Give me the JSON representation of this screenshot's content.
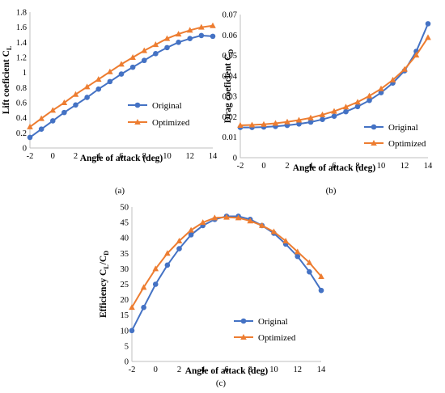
{
  "colors": {
    "original": "#4472C4",
    "optimized": "#ED7D31",
    "axis": "#bfbfbf"
  },
  "chart_data": [
    {
      "type": "line",
      "caption": "(a)",
      "xlabel": "Angle of attack (deg)",
      "ylabel_main": "Lift coeficient C",
      "ylabel_sub": "L",
      "xlim": [
        -2,
        14
      ],
      "ylim": [
        0,
        1.8
      ],
      "xticks": [
        -2,
        0,
        2,
        4,
        6,
        8,
        10,
        12,
        14
      ],
      "yticks": [
        "0",
        "0.2",
        "0.4",
        "0.6",
        "0.8",
        "1",
        "1.2",
        "1.4",
        "1.6",
        "1.8"
      ],
      "ytick_values": [
        0,
        0.2,
        0.4,
        0.6,
        0.8,
        1.0,
        1.2,
        1.4,
        1.6,
        1.8
      ],
      "grid": false,
      "legend_position": "lower-right",
      "x": [
        -2,
        -1,
        0,
        1,
        2,
        3,
        4,
        5,
        6,
        7,
        8,
        9,
        10,
        11,
        12,
        13,
        14
      ],
      "series": [
        {
          "name": "Original",
          "marker": "circle",
          "values": [
            0.14,
            0.25,
            0.36,
            0.47,
            0.57,
            0.67,
            0.78,
            0.88,
            0.98,
            1.07,
            1.16,
            1.25,
            1.33,
            1.4,
            1.45,
            1.49,
            1.48
          ]
        },
        {
          "name": "Optimized",
          "marker": "triangle",
          "values": [
            0.28,
            0.39,
            0.5,
            0.6,
            0.71,
            0.81,
            0.91,
            1.01,
            1.11,
            1.2,
            1.29,
            1.37,
            1.45,
            1.51,
            1.56,
            1.6,
            1.62
          ]
        }
      ]
    },
    {
      "type": "line",
      "caption": "(b)",
      "xlabel": "Angle of attack (deg)",
      "ylabel_main": "Drag coeficient C",
      "ylabel_sub": "D",
      "xlim": [
        -2,
        14
      ],
      "ylim": [
        0,
        0.07
      ],
      "xticks": [
        -2,
        0,
        2,
        4,
        6,
        8,
        10,
        12,
        14
      ],
      "yticks": [
        "0",
        "0.01",
        "0.02",
        "0.03",
        "0.04",
        "0.05",
        "0.06",
        "0.07"
      ],
      "ytick_values": [
        0,
        0.01,
        0.02,
        0.03,
        0.04,
        0.05,
        0.06,
        0.07
      ],
      "grid": false,
      "legend_position": "lower-right",
      "x": [
        -2,
        -1,
        0,
        1,
        2,
        3,
        4,
        5,
        6,
        7,
        8,
        9,
        10,
        11,
        12,
        13,
        14
      ],
      "series": [
        {
          "name": "Original",
          "marker": "circle",
          "values": [
            0.0148,
            0.0148,
            0.015,
            0.0153,
            0.0158,
            0.0165,
            0.0174,
            0.0187,
            0.0203,
            0.0225,
            0.025,
            0.028,
            0.0318,
            0.0365,
            0.0425,
            0.052,
            0.0655
          ]
        },
        {
          "name": "Optimized",
          "marker": "triangle",
          "values": [
            0.0158,
            0.016,
            0.0163,
            0.0168,
            0.0175,
            0.0184,
            0.0195,
            0.021,
            0.0227,
            0.0248,
            0.0272,
            0.0302,
            0.0337,
            0.038,
            0.0432,
            0.0502,
            0.0588
          ]
        }
      ]
    },
    {
      "type": "line",
      "caption": "(c)",
      "xlabel": "Angle of attack (deg)",
      "ylabel_main": "Efficiency C",
      "ylabel_sub": "L",
      "ylabel_mid": "/C",
      "ylabel_sub2": "D",
      "xlim": [
        -2,
        14
      ],
      "ylim": [
        0,
        50
      ],
      "xticks": [
        -2,
        0,
        2,
        4,
        6,
        8,
        10,
        12,
        14
      ],
      "yticks": [
        "0",
        "5",
        "10",
        "15",
        "20",
        "25",
        "30",
        "35",
        "40",
        "45",
        "50"
      ],
      "ytick_values": [
        0,
        5,
        10,
        15,
        20,
        25,
        30,
        35,
        40,
        45,
        50
      ],
      "grid": false,
      "legend_position": "lower-right",
      "x": [
        -2,
        -1,
        0,
        1,
        2,
        3,
        4,
        5,
        6,
        7,
        8,
        9,
        10,
        11,
        12,
        13,
        14
      ],
      "series": [
        {
          "name": "Original",
          "marker": "circle",
          "values": [
            10.0,
            17.5,
            25.0,
            31.2,
            36.5,
            41.0,
            44.0,
            46.0,
            47.0,
            47.0,
            46.0,
            44.0,
            41.5,
            38.0,
            34.0,
            29.0,
            23.0
          ]
        },
        {
          "name": "Optimized",
          "marker": "triangle",
          "values": [
            17.5,
            24.0,
            30.0,
            35.0,
            39.0,
            42.5,
            45.0,
            46.5,
            46.7,
            46.5,
            45.5,
            44.0,
            42.0,
            39.0,
            35.5,
            32.0,
            27.5
          ]
        }
      ]
    }
  ]
}
